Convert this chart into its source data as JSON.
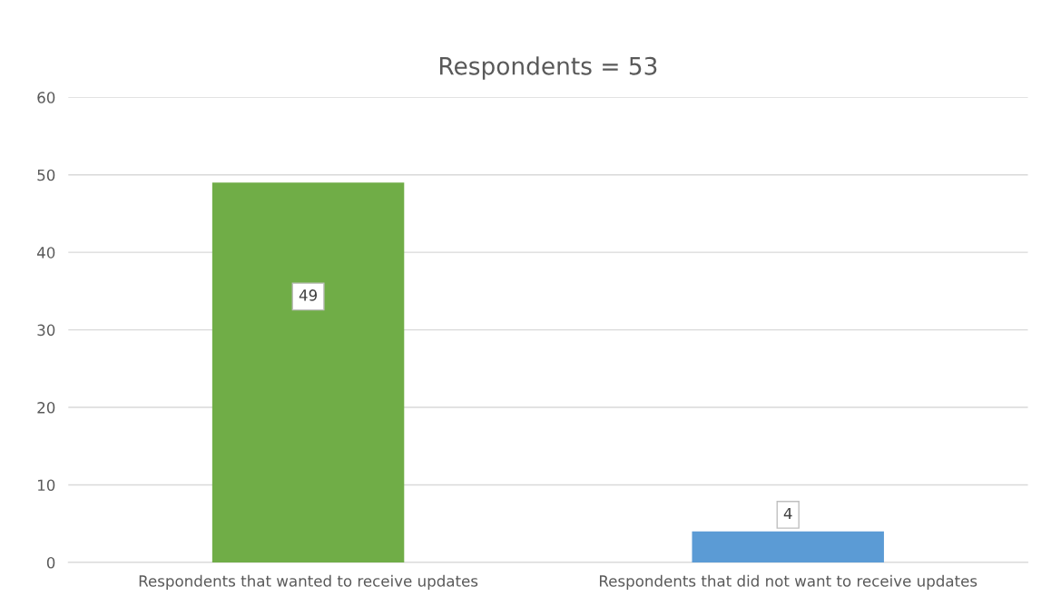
{
  "chart_data": {
    "type": "bar",
    "title": "Respondents = 53",
    "categories": [
      "Respondents that wanted to receive updates",
      "Respondents that did not want to receive updates"
    ],
    "values": [
      49,
      4
    ],
    "colors": [
      "#70ad47",
      "#5b9bd5"
    ],
    "ylim": [
      0,
      60
    ],
    "yticks": [
      0,
      10,
      20,
      30,
      40,
      50,
      60
    ],
    "grid": "y",
    "data_labels": true
  }
}
